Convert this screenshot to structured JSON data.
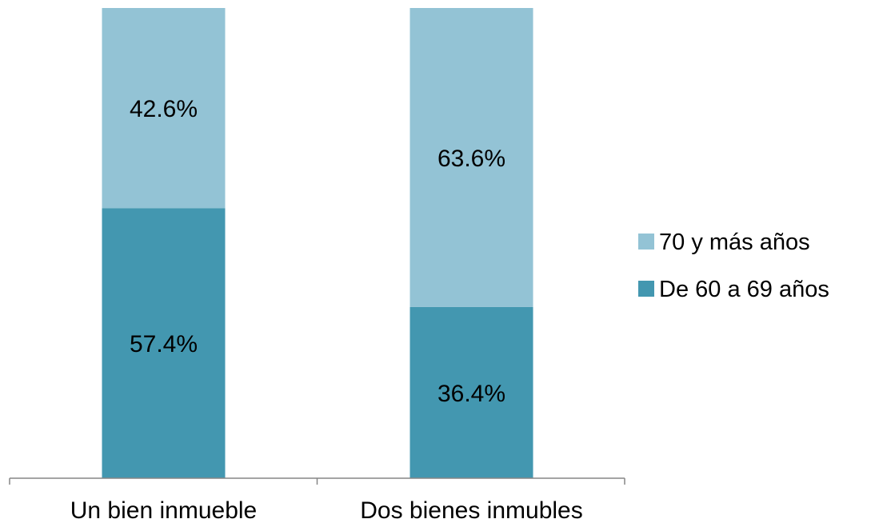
{
  "chart_data": {
    "type": "bar",
    "stacked": true,
    "normalized_percent": true,
    "categories": [
      "Un bien inmueble",
      "Dos bienes inmubles"
    ],
    "series": [
      {
        "name": "De 60 a 69 años",
        "values": [
          57.4,
          36.4
        ],
        "labels": [
          "57.4%",
          "36.4%"
        ],
        "color": "#4397b0"
      },
      {
        "name": "70 y más años",
        "values": [
          42.6,
          63.6
        ],
        "labels": [
          "42.6%",
          "63.6%"
        ],
        "color": "#93c3d5"
      }
    ],
    "ylim": [
      0,
      100
    ],
    "grid": false,
    "legend": "right"
  }
}
